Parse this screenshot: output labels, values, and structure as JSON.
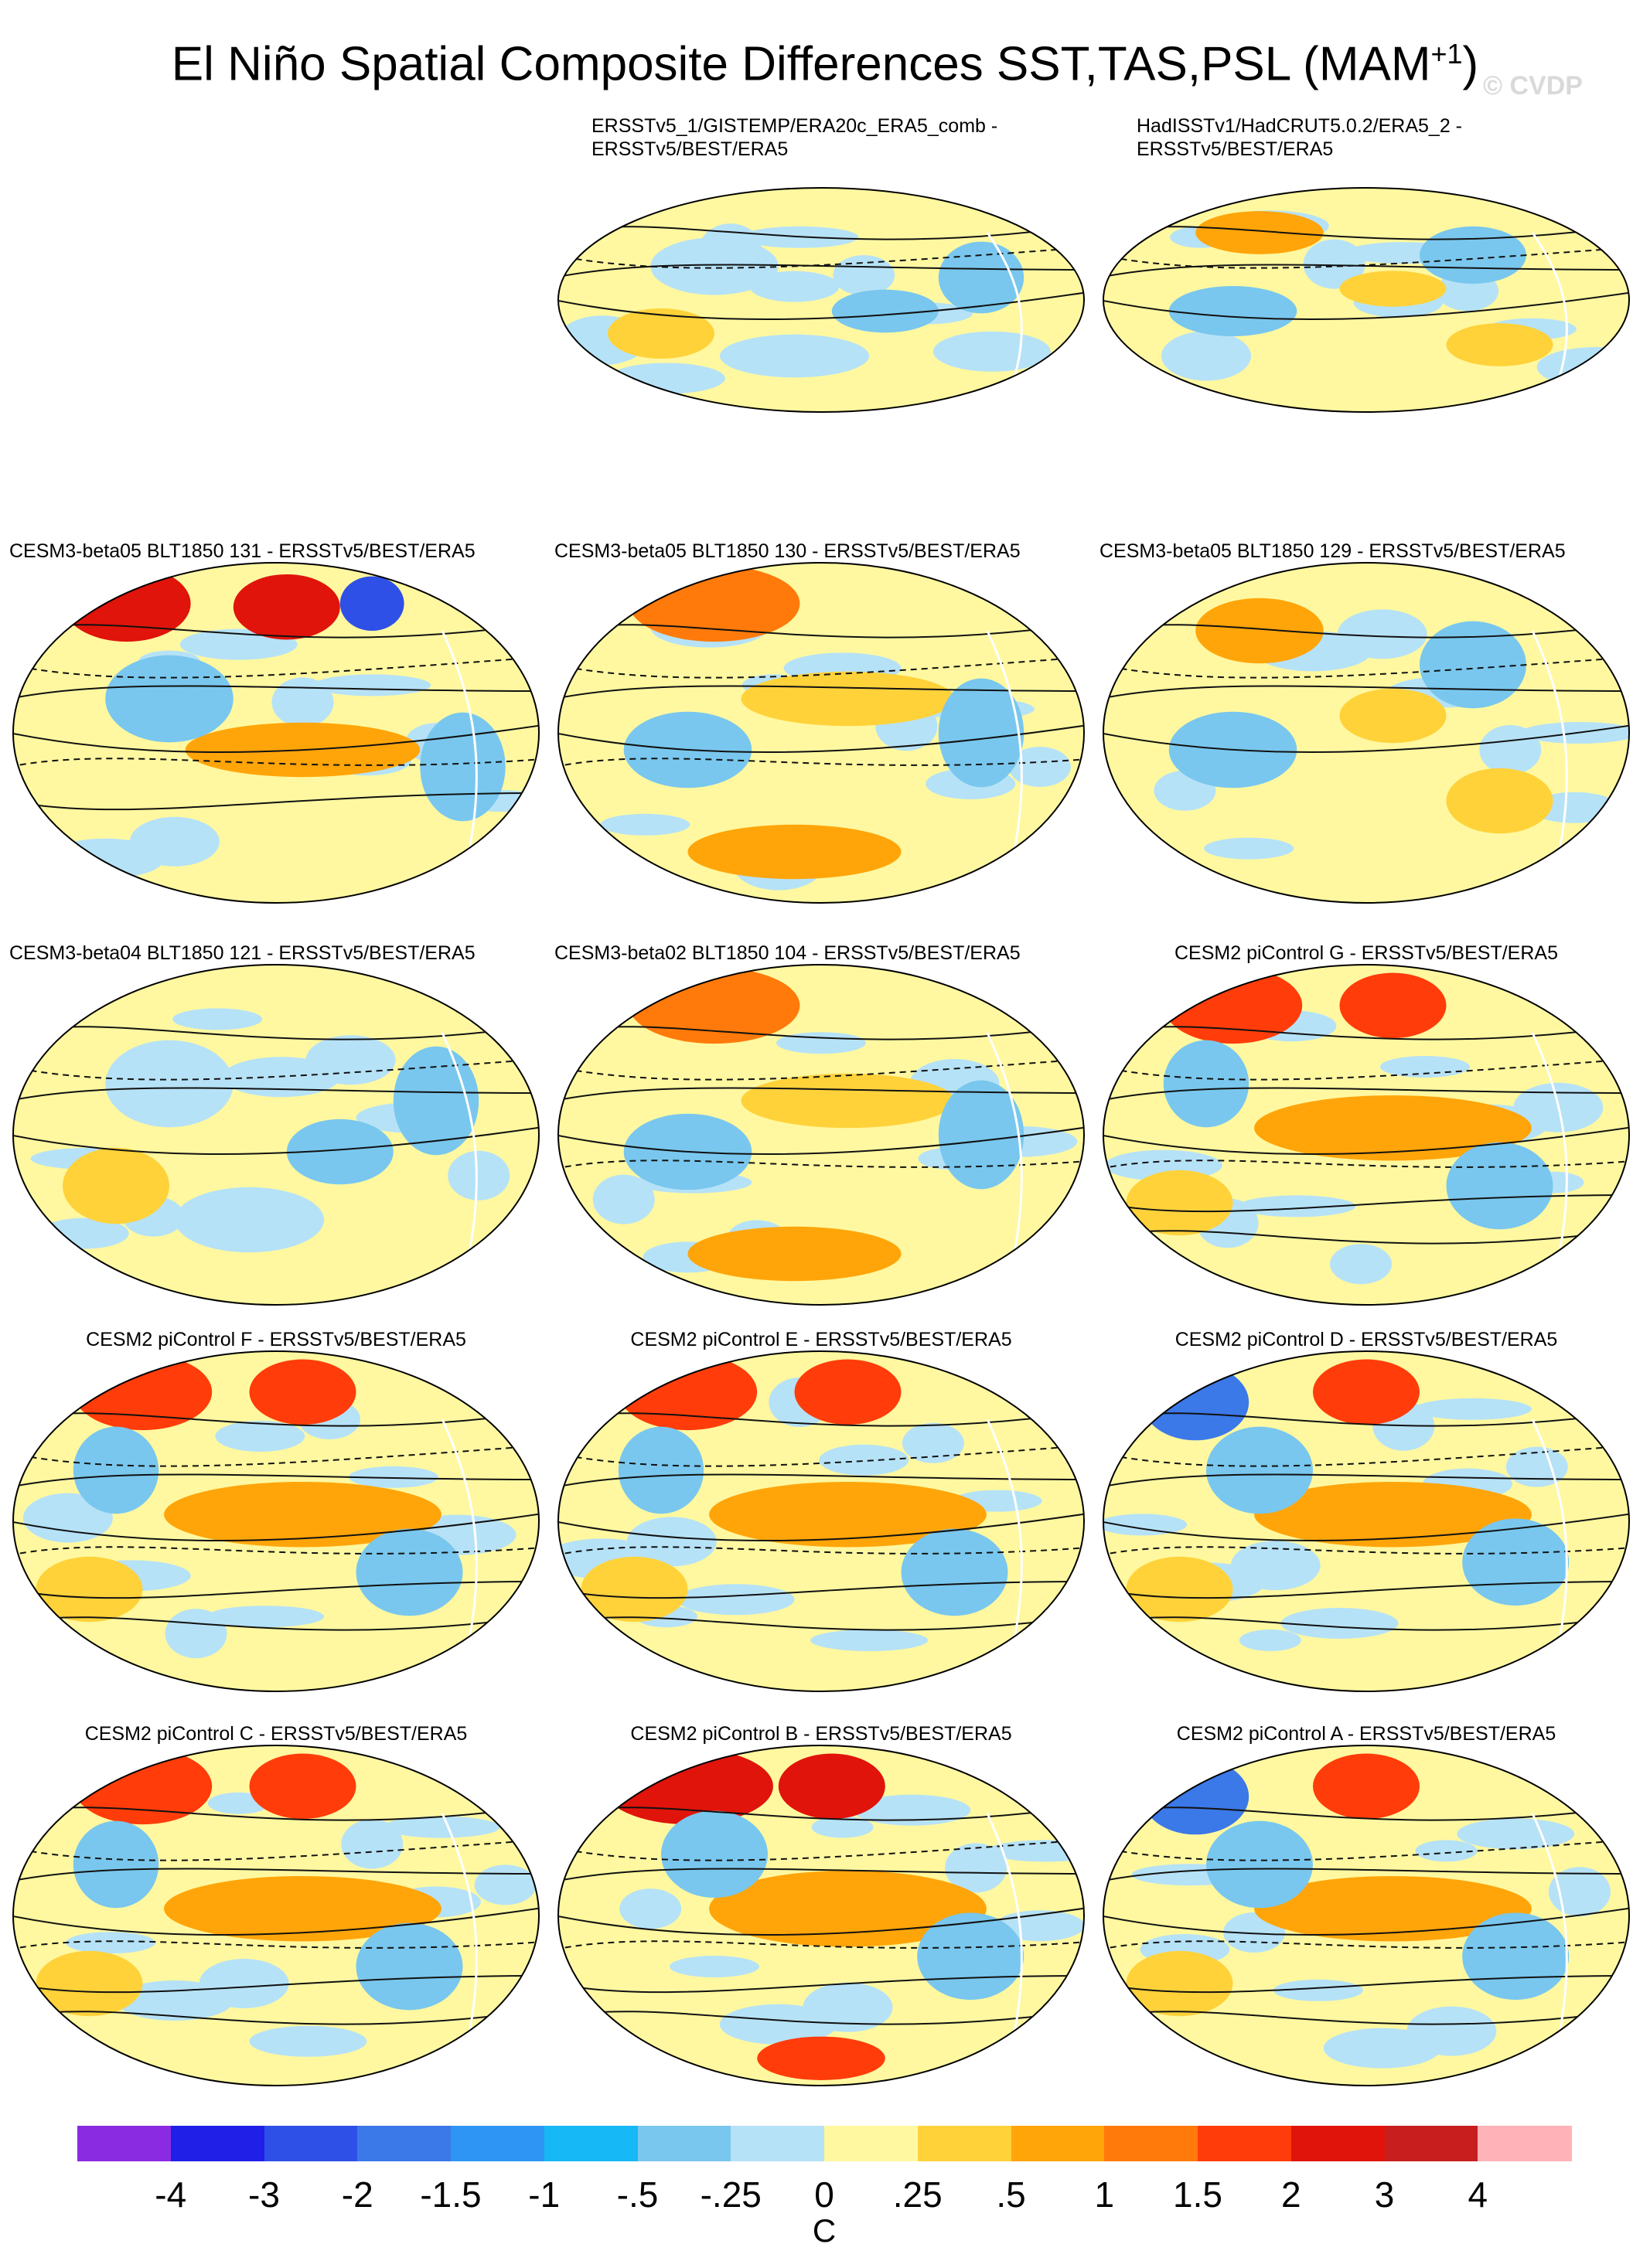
{
  "title": "El Niño Spatial Composite Differences SST,TAS,PSL (MAM",
  "title_superscript": "+1",
  "title_close": ")",
  "watermark": "© CVDP",
  "panels": [
    {
      "row": 0,
      "col": 1,
      "title": [
        "ERSSTv5_1/GISTEMP/ERA20c_ERA5_comb -",
        "ERSSTv5/BEST/ERA5"
      ],
      "pattern": "mild"
    },
    {
      "row": 0,
      "col": 2,
      "title": [
        "HadISSTv1/HadCRUT5.0.2/ERA5_2 -",
        "ERSSTv5/BEST/ERA5"
      ],
      "pattern": "mild-warm"
    },
    {
      "row": 1,
      "col": 0,
      "title": [
        "CESM3-beta05 BLT1850 131 - ERSSTv5/BEST/ERA5"
      ],
      "pattern": "strong"
    },
    {
      "row": 1,
      "col": 1,
      "title": [
        "CESM3-beta05 BLT1850 130 - ERSSTv5/BEST/ERA5"
      ],
      "pattern": "warm"
    },
    {
      "row": 1,
      "col": 2,
      "title": [
        "CESM3-beta05 BLT1850 129 - ERSSTv5/BEST/ERA5"
      ],
      "pattern": "mild-warm"
    },
    {
      "row": 2,
      "col": 0,
      "title": [
        "CESM3-beta04 BLT1850 121 - ERSSTv5/BEST/ERA5"
      ],
      "pattern": "mild"
    },
    {
      "row": 2,
      "col": 1,
      "title": [
        "CESM3-beta02 BLT1850 104 - ERSSTv5/BEST/ERA5"
      ],
      "pattern": "warm"
    },
    {
      "row": 2,
      "col": 2,
      "title": [
        "CESM2 piControl G - ERSSTv5/BEST/ERA5"
      ],
      "pattern": "cesm2"
    },
    {
      "row": 3,
      "col": 0,
      "title": [
        "CESM2 piControl F - ERSSTv5/BEST/ERA5"
      ],
      "pattern": "cesm2"
    },
    {
      "row": 3,
      "col": 1,
      "title": [
        "CESM2 piControl E - ERSSTv5/BEST/ERA5"
      ],
      "pattern": "cesm2"
    },
    {
      "row": 3,
      "col": 2,
      "title": [
        "CESM2 piControl D - ERSSTv5/BEST/ERA5"
      ],
      "pattern": "cesm2-cold"
    },
    {
      "row": 4,
      "col": 0,
      "title": [
        "CESM2 piControl C - ERSSTv5/BEST/ERA5"
      ],
      "pattern": "cesm2"
    },
    {
      "row": 4,
      "col": 1,
      "title": [
        "CESM2 piControl B - ERSSTv5/BEST/ERA5"
      ],
      "pattern": "cesm2-strong"
    },
    {
      "row": 4,
      "col": 2,
      "title": [
        "CESM2 piControl A - ERSSTv5/BEST/ERA5"
      ],
      "pattern": "cesm2-cold"
    }
  ],
  "colorbar": {
    "colors": [
      "#8a2be2",
      "#1f1fe8",
      "#2e50e6",
      "#3b78e8",
      "#2f95f5",
      "#16b8f5",
      "#79c7ee",
      "#b6e2f7",
      "#fff8a0",
      "#ffd23a",
      "#ffa50a",
      "#ff7a0a",
      "#ff3c0a",
      "#e0140a",
      "#c81e1e",
      "#ffb3b8"
    ],
    "labels": [
      "-4",
      "-3",
      "-2",
      "-1.5",
      "-1",
      "-.5",
      "-.25",
      "0",
      ".25",
      ".5",
      "1",
      "1.5",
      "2",
      "3",
      "4"
    ],
    "units": "C"
  }
}
